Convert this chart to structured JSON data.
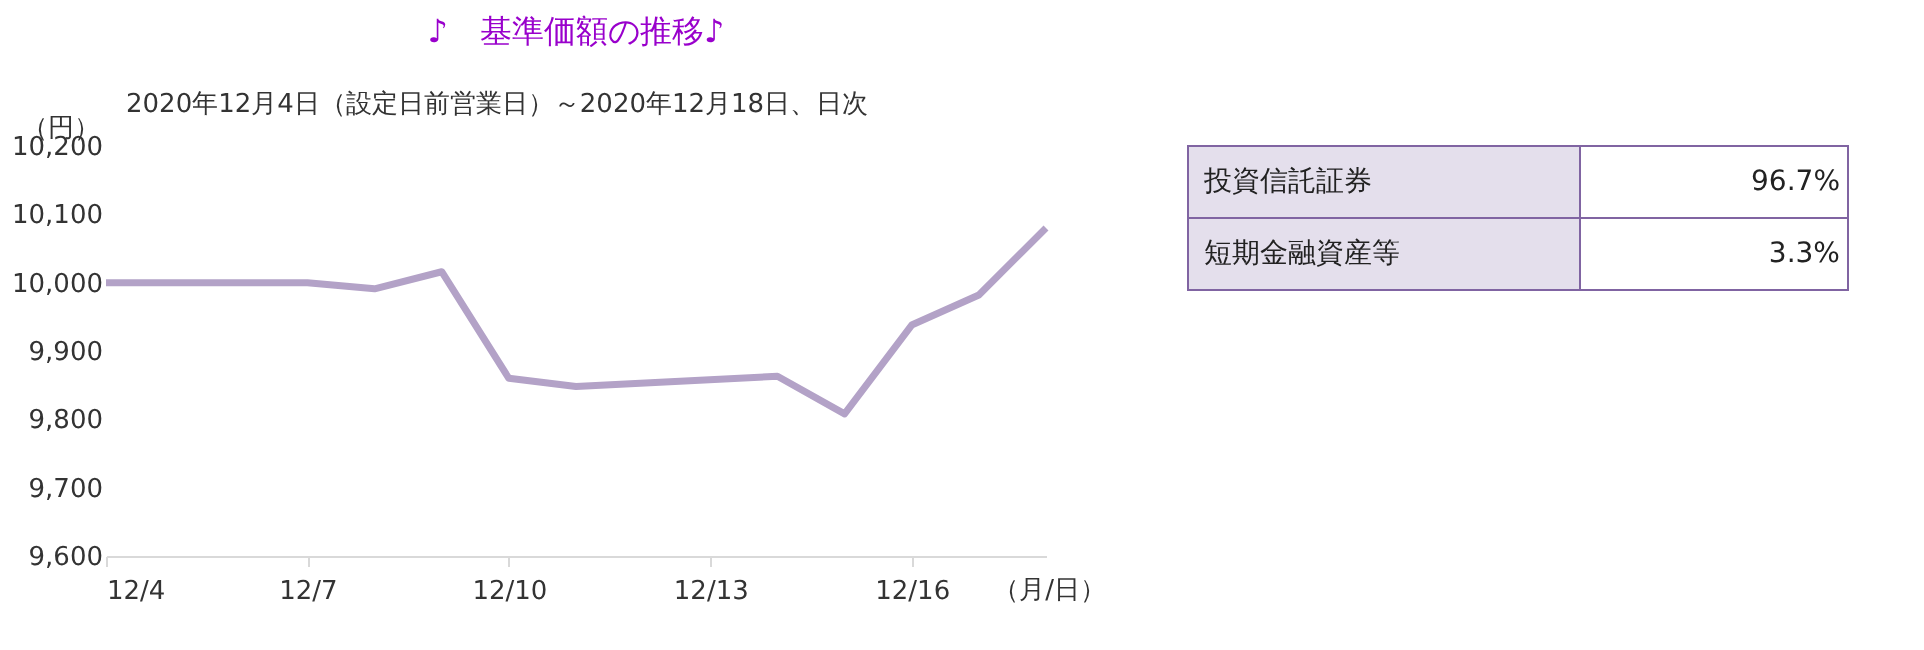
{
  "chart_data": [
    {
      "type": "line",
      "title": "♪　基準価額の推移♪",
      "subtitle": "2020年12月4日（設定日前営業日）～2020年12月18日、日次",
      "ylabel": "（円）",
      "xlabel": "（月/日）",
      "x": [
        "2020-12-04",
        "2020-12-07",
        "2020-12-08",
        "2020-12-09",
        "2020-12-10",
        "2020-12-11",
        "2020-12-14",
        "2020-12-15",
        "2020-12-16",
        "2020-12-17",
        "2020-12-18"
      ],
      "series": [
        {
          "color": "#b3a2c7",
          "values": [
            10000,
            10000,
            9991,
            10016,
            9860,
            9848,
            9863,
            9808,
            9938,
            9982,
            10080
          ]
        }
      ],
      "xlim": [
        "2020-12-04",
        "2020-12-18"
      ],
      "xticks": [
        {
          "value": "2020-12-04",
          "label": "12/4"
        },
        {
          "value": "2020-12-07",
          "label": "12/7"
        },
        {
          "value": "2020-12-10",
          "label": "12/10"
        },
        {
          "value": "2020-12-13",
          "label": "12/13"
        },
        {
          "value": "2020-12-16",
          "label": "12/16"
        }
      ],
      "ylim": [
        9600,
        10200
      ],
      "yticks": [
        {
          "value": 9600,
          "label": "9,600"
        },
        {
          "value": 9700,
          "label": "9,700"
        },
        {
          "value": 9800,
          "label": "9,800"
        },
        {
          "value": 9900,
          "label": "9,900"
        },
        {
          "value": 10000,
          "label": "10,000"
        },
        {
          "value": 10100,
          "label": "10,100"
        },
        {
          "value": 10200,
          "label": "10,200"
        }
      ],
      "grid": false,
      "legend": false,
      "marker": "none",
      "line_style": "solid"
    },
    {
      "type": "other",
      "annotations": [
        "投資信託証券",
        "96.7%",
        "短期金融資産等",
        "3.3%"
      ]
    }
  ]
}
